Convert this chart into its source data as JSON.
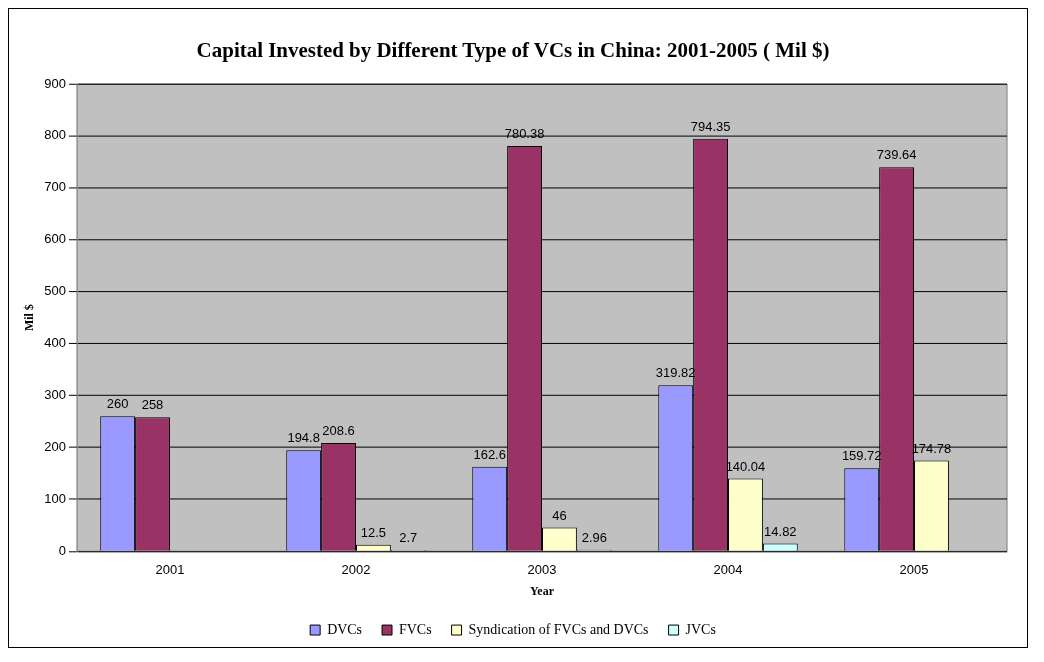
{
  "chart_data": {
    "type": "bar",
    "title": "Capital Invested by Different Type of VCs in China: 2001-2005 ( Mil $)",
    "xlabel": "Year",
    "ylabel": "Mil $",
    "categories": [
      "2001",
      "2002",
      "2003",
      "2004",
      "2005"
    ],
    "series": [
      {
        "name": "DVCs",
        "color": "#9999ff",
        "values": [
          260,
          194.8,
          162.6,
          319.82,
          159.72
        ]
      },
      {
        "name": "FVCs",
        "color": "#993366",
        "values": [
          258,
          208.6,
          780.38,
          794.35,
          739.64
        ]
      },
      {
        "name": "Syndication of FVCs and DVCs",
        "color": "#ffffcc",
        "values": [
          null,
          12.5,
          46,
          140.04,
          174.78
        ]
      },
      {
        "name": "JVCs",
        "color": "#ccffff",
        "values": [
          null,
          2.7,
          2.96,
          14.82,
          null
        ]
      }
    ],
    "ylim": [
      0,
      900
    ],
    "yticks": [
      0,
      100,
      200,
      300,
      400,
      500,
      600,
      700,
      800,
      900
    ],
    "grid": "y",
    "legend": "bottom",
    "data_labels": true
  }
}
